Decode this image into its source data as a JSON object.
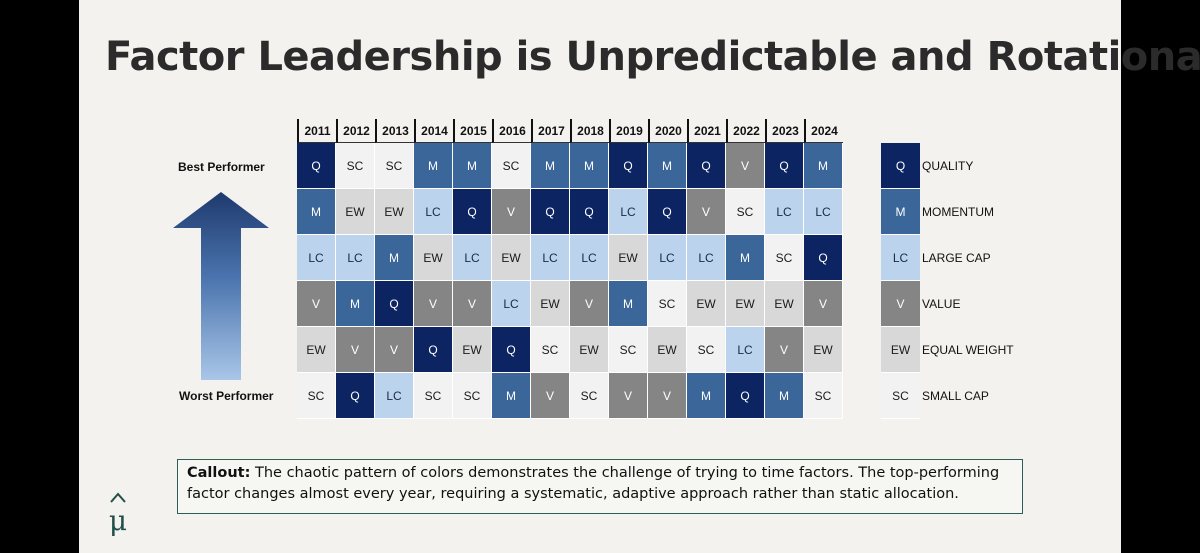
{
  "slide": {
    "title": "Factor Leadership is Unpredictable and Rotational",
    "best_label": "Best Performer",
    "worst_label": "Worst Performer",
    "logo_glyph": "μ̂"
  },
  "years": [
    "2011",
    "2012",
    "2013",
    "2014",
    "2015",
    "2016",
    "2017",
    "2018",
    "2019",
    "2020",
    "2021",
    "2022",
    "2023",
    "2024"
  ],
  "rows": [
    [
      "Q",
      "SC",
      "SC",
      "M",
      "M",
      "SC",
      "M",
      "M",
      "Q",
      "M",
      "Q",
      "V",
      "Q",
      "M"
    ],
    [
      "M",
      "EW",
      "EW",
      "LC",
      "Q",
      "V",
      "Q",
      "Q",
      "LC",
      "Q",
      "V",
      "SC",
      "LC",
      "LC"
    ],
    [
      "LC",
      "LC",
      "M",
      "EW",
      "LC",
      "EW",
      "LC",
      "LC",
      "EW",
      "LC",
      "LC",
      "M",
      "SC",
      "Q"
    ],
    [
      "V",
      "M",
      "Q",
      "V",
      "V",
      "LC",
      "EW",
      "V",
      "M",
      "SC",
      "EW",
      "EW",
      "EW",
      "V"
    ],
    [
      "EW",
      "V",
      "V",
      "Q",
      "EW",
      "Q",
      "SC",
      "EW",
      "SC",
      "EW",
      "SC",
      "LC",
      "V",
      "EW"
    ],
    [
      "SC",
      "Q",
      "LC",
      "SC",
      "SC",
      "M",
      "V",
      "SC",
      "V",
      "V",
      "M",
      "Q",
      "M",
      "SC"
    ]
  ],
  "legend": [
    {
      "code": "Q",
      "name": "QUALITY"
    },
    {
      "code": "M",
      "name": "MOMENTUM"
    },
    {
      "code": "LC",
      "name": "LARGE CAP"
    },
    {
      "code": "V",
      "name": "VALUE"
    },
    {
      "code": "EW",
      "name": "EQUAL WEIGHT"
    },
    {
      "code": "SC",
      "name": "SMALL CAP"
    }
  ],
  "colors": {
    "Q": "#0c2461",
    "M": "#3a6699",
    "LC": "#bcd3ee",
    "V": "#858585",
    "EW": "#d8d8d8",
    "SC": "#f2f2f2",
    "callout_border": "#2f5d57",
    "logo": "#1f4f4a"
  },
  "callout": {
    "label": "Callout:",
    "text": " The chaotic pattern of colors demonstrates the challenge of trying to time factors. The top-performing factor changes almost every year, requiring a systematic, adaptive approach rather than static allocation."
  }
}
